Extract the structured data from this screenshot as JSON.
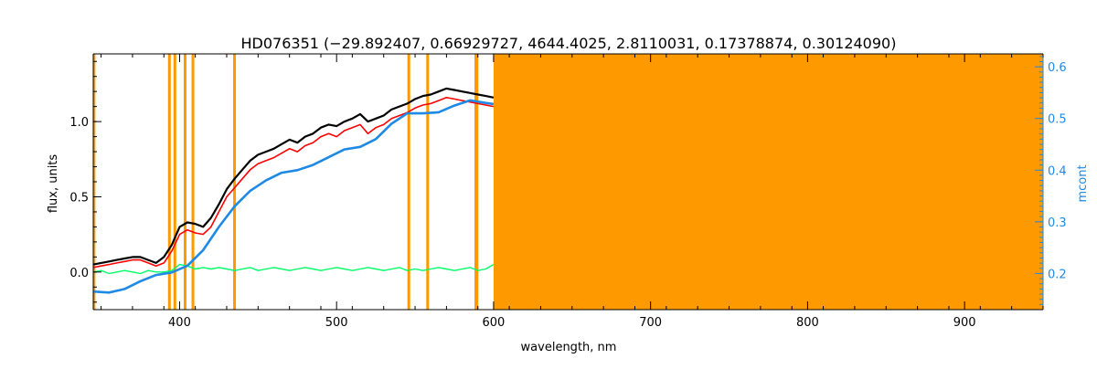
{
  "chart_data": {
    "type": "line",
    "title": "HD076351    (−29.892407, 0.66929727, 4644.4025, 2.8110031, 0.17378874, 0.30124090)",
    "xlabel": "wavelength, nm",
    "ylabel": "flux, units",
    "y2label": "mcont",
    "xlim": [
      345,
      950
    ],
    "ylim": [
      -0.25,
      1.45
    ],
    "y2lim": [
      0.13,
      0.625
    ],
    "xticks": [
      400,
      500,
      600,
      700,
      800,
      900
    ],
    "yticks": [
      0.0,
      0.5,
      1.0
    ],
    "y2ticks": [
      0.2,
      0.3,
      0.4,
      0.5,
      0.6
    ],
    "xtick_labels": [
      "400",
      "500",
      "600",
      "700",
      "800",
      "900"
    ],
    "ytick_labels": [
      "0.0",
      "0.5",
      "1.0"
    ],
    "y2tick_labels": [
      "0.2",
      "0.3",
      "0.4",
      "0.5",
      "0.6"
    ],
    "grid": false,
    "masked_region": [
      600,
      950
    ],
    "mask_lines": [
      345.5,
      393.5,
      397,
      403.5,
      408.5,
      435,
      546,
      558,
      588.7,
      589.4
    ],
    "colors": {
      "observed": "#000000",
      "model": "#ff0000",
      "residual": "#00ff66",
      "continuum": "#1e8ae6",
      "mask": "#ff9900",
      "y2axis": "#1e8ae6"
    },
    "series": [
      {
        "key": "observed",
        "x": [
          345,
          350,
          355,
          360,
          365,
          370,
          375,
          380,
          385,
          390,
          395,
          400,
          405,
          410,
          415,
          420,
          425,
          430,
          435,
          440,
          445,
          450,
          455,
          460,
          465,
          470,
          475,
          480,
          485,
          490,
          495,
          500,
          505,
          510,
          515,
          520,
          525,
          530,
          535,
          540,
          545,
          550,
          555,
          560,
          565,
          570,
          575,
          580,
          585,
          590,
          595,
          600
        ],
        "y": [
          0.05,
          0.06,
          0.07,
          0.08,
          0.09,
          0.1,
          0.1,
          0.08,
          0.06,
          0.1,
          0.18,
          0.3,
          0.33,
          0.32,
          0.3,
          0.36,
          0.45,
          0.55,
          0.62,
          0.68,
          0.74,
          0.78,
          0.8,
          0.82,
          0.85,
          0.88,
          0.86,
          0.9,
          0.92,
          0.96,
          0.98,
          0.97,
          1.0,
          1.02,
          1.05,
          1.0,
          1.02,
          1.04,
          1.08,
          1.1,
          1.12,
          1.15,
          1.17,
          1.18,
          1.2,
          1.22,
          1.21,
          1.2,
          1.19,
          1.18,
          1.17,
          1.16
        ]
      },
      {
        "key": "model",
        "x": [
          345,
          350,
          355,
          360,
          365,
          370,
          375,
          380,
          385,
          390,
          395,
          400,
          405,
          410,
          415,
          420,
          425,
          430,
          435,
          440,
          445,
          450,
          455,
          460,
          465,
          470,
          475,
          480,
          485,
          490,
          495,
          500,
          505,
          510,
          515,
          520,
          525,
          530,
          535,
          540,
          545,
          550,
          555,
          560,
          565,
          570,
          575,
          580,
          585,
          590,
          595,
          600
        ],
        "y": [
          0.03,
          0.04,
          0.05,
          0.06,
          0.07,
          0.08,
          0.08,
          0.06,
          0.04,
          0.06,
          0.14,
          0.25,
          0.28,
          0.26,
          0.25,
          0.3,
          0.4,
          0.5,
          0.56,
          0.62,
          0.68,
          0.72,
          0.74,
          0.76,
          0.79,
          0.82,
          0.8,
          0.84,
          0.86,
          0.9,
          0.92,
          0.9,
          0.94,
          0.96,
          0.98,
          0.92,
          0.96,
          0.98,
          1.02,
          1.04,
          1.06,
          1.09,
          1.11,
          1.12,
          1.14,
          1.16,
          1.15,
          1.14,
          1.13,
          1.12,
          1.11,
          1.1
        ]
      },
      {
        "key": "residual",
        "x": [
          345,
          350,
          355,
          360,
          365,
          370,
          375,
          380,
          385,
          390,
          395,
          400,
          405,
          410,
          415,
          420,
          425,
          430,
          435,
          440,
          445,
          450,
          455,
          460,
          465,
          470,
          475,
          480,
          485,
          490,
          495,
          500,
          505,
          510,
          515,
          520,
          525,
          530,
          535,
          540,
          545,
          550,
          555,
          560,
          565,
          570,
          575,
          580,
          585,
          590,
          595,
          600
        ],
        "y": [
          0.0,
          0.01,
          -0.01,
          0.0,
          0.01,
          0.0,
          -0.01,
          0.01,
          0.0,
          0.0,
          0.01,
          0.05,
          0.04,
          0.02,
          0.03,
          0.02,
          0.03,
          0.02,
          0.01,
          0.02,
          0.03,
          0.01,
          0.02,
          0.03,
          0.02,
          0.01,
          0.02,
          0.03,
          0.02,
          0.01,
          0.02,
          0.03,
          0.02,
          0.01,
          0.02,
          0.03,
          0.02,
          0.01,
          0.02,
          0.03,
          0.01,
          0.02,
          0.01,
          0.02,
          0.03,
          0.02,
          0.01,
          0.02,
          0.03,
          0.01,
          0.02,
          0.05
        ]
      },
      {
        "key": "continuum",
        "axis": "y2",
        "x": [
          345,
          355,
          365,
          375,
          385,
          395,
          405,
          415,
          425,
          435,
          445,
          455,
          465,
          475,
          485,
          495,
          505,
          515,
          525,
          535,
          545,
          555,
          565,
          575,
          585,
          595,
          600
        ],
        "y": [
          0.165,
          0.163,
          0.17,
          0.185,
          0.197,
          0.202,
          0.215,
          0.245,
          0.29,
          0.33,
          0.36,
          0.38,
          0.395,
          0.4,
          0.41,
          0.425,
          0.44,
          0.445,
          0.46,
          0.49,
          0.51,
          0.51,
          0.512,
          0.525,
          0.535,
          0.53,
          0.528
        ]
      }
    ]
  }
}
